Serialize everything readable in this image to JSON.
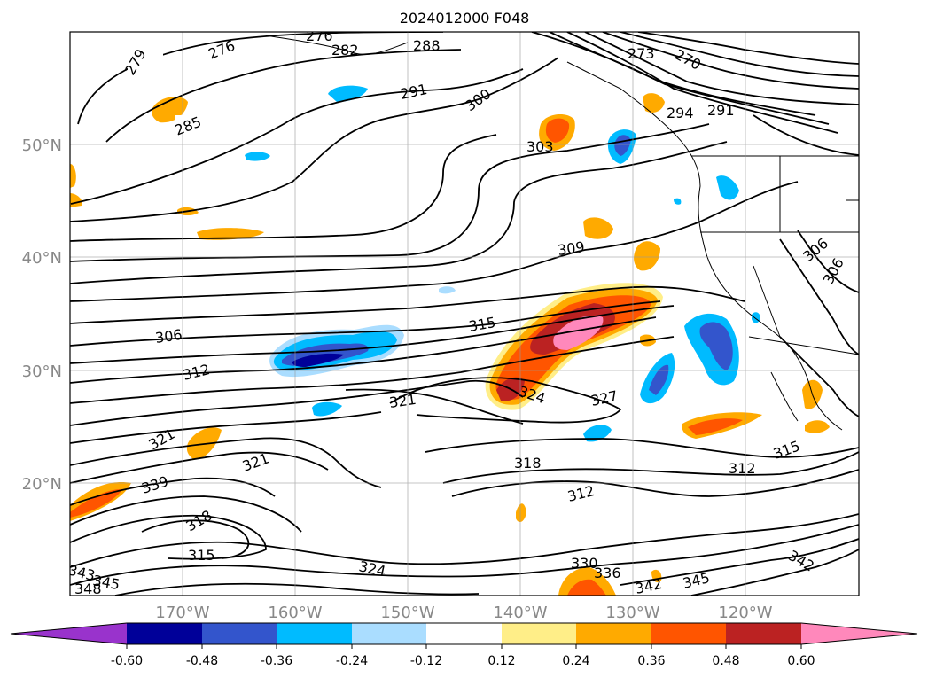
{
  "title": "2024012000 F048",
  "lat_labels": [
    "50°N",
    "40°N",
    "30°N",
    "20°N"
  ],
  "lon_labels": [
    "170°W",
    "160°W",
    "150°W",
    "140°W",
    "130°W",
    "120°W"
  ],
  "colorbar": {
    "ticks": [
      "-0.60",
      "-0.48",
      "-0.36",
      "-0.24",
      "-0.12",
      "0.12",
      "0.24",
      "0.36",
      "0.48",
      "0.60"
    ],
    "colors": [
      "#9933cc",
      "#000099",
      "#3355cc",
      "#00bbff",
      "#aaddff",
      "#ffffff",
      "#ffee88",
      "#ffaa00",
      "#ff5500",
      "#bb2222",
      "#ff88bb"
    ]
  },
  "contour_labels": [
    "279",
    "276",
    "276",
    "282",
    "288",
    "285",
    "291",
    "300",
    "303",
    "273",
    "270",
    "294",
    "291",
    "309",
    "306",
    "306",
    "315",
    "306",
    "312",
    "324",
    "321",
    "327",
    "321",
    "318",
    "312",
    "312",
    "315",
    "321",
    "339",
    "318",
    "315",
    "324",
    "330",
    "336",
    "342",
    "345",
    "342",
    "343",
    "345",
    "348"
  ]
}
